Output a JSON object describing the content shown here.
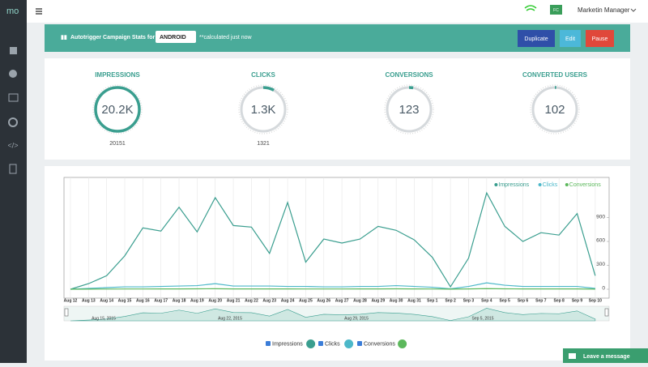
{
  "sidebar": {
    "logo": "mo"
  },
  "topbar": {
    "avatar": "FC",
    "user": "Marketin Manager"
  },
  "stats_header": {
    "title": "Autotrigger Campaign Stats for",
    "platform": "ANDROID",
    "note": "**calculated just now",
    "buttons": [
      "Duplicate",
      "Edit",
      "Pause"
    ]
  },
  "stats": [
    {
      "label": "IMPRESSIONS",
      "value": "20.2K",
      "detail": "20151"
    },
    {
      "label": "CLICKS",
      "value": "1.3K",
      "detail": "1321"
    },
    {
      "label": "CONVERSIONS",
      "value": "123"
    },
    {
      "label": "CONVERTED USERS",
      "value": "102"
    }
  ],
  "chart": {
    "type": "line",
    "categories": [
      "Aug 12",
      "Aug 13",
      "Aug 14",
      "Aug 15",
      "Aug 16",
      "Aug 17",
      "Aug 18",
      "Aug 19",
      "Aug 20",
      "Aug 21",
      "Aug 22",
      "Aug 23",
      "Aug 24",
      "Aug 25",
      "Aug 26",
      "Aug 27",
      "Aug 28",
      "Aug 29",
      "Aug 30",
      "Aug 31",
      "Sep 1",
      "Sep 2",
      "Sep 3",
      "Sep 4",
      "Sep 5",
      "Sep 6",
      "Sep 7",
      "Sep 8",
      "Sep 9",
      "Sep 10"
    ],
    "series": [
      {
        "name": "Impressions",
        "color": "#3a9e8f",
        "values": [
          0,
          70,
          170,
          420,
          770,
          730,
          1030,
          720,
          1150,
          800,
          780,
          450,
          1090,
          340,
          630,
          580,
          630,
          790,
          740,
          620,
          400,
          30,
          390,
          1210,
          790,
          600,
          710,
          680,
          950,
          170
        ]
      },
      {
        "name": "Clicks",
        "color": "#4cb8c9",
        "values": [
          0,
          10,
          20,
          30,
          30,
          35,
          40,
          45,
          70,
          40,
          40,
          40,
          35,
          35,
          30,
          30,
          35,
          35,
          45,
          35,
          25,
          5,
          35,
          80,
          50,
          35,
          35,
          35,
          35,
          10
        ]
      },
      {
        "name": "Conversions",
        "color": "#5cb85c",
        "values": [
          0,
          1,
          2,
          3,
          3,
          4,
          4,
          5,
          6,
          4,
          4,
          4,
          4,
          3,
          3,
          3,
          4,
          4,
          5,
          4,
          3,
          1,
          4,
          8,
          5,
          4,
          4,
          4,
          4,
          1
        ]
      }
    ],
    "ylim": [
      0,
      1400
    ],
    "yticks": [
      0,
      300,
      600,
      900
    ],
    "legend": "top-right",
    "navigator_labels": [
      "Aug 15, 2015",
      "Aug 22, 2015",
      "Aug 29, 2015",
      "Sep 5, 2015"
    ]
  },
  "chat": {
    "label": "Leave a message"
  }
}
